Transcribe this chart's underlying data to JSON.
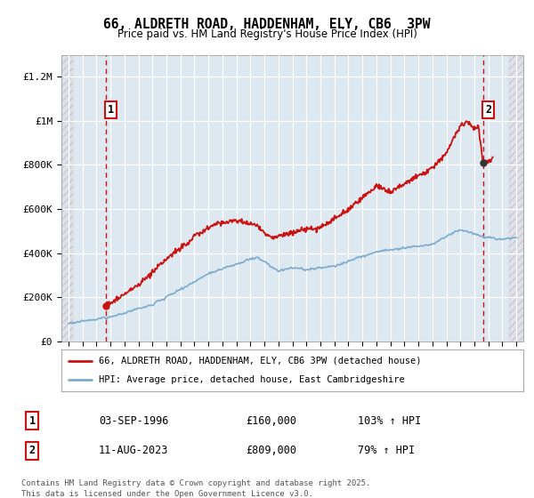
{
  "title": "66, ALDRETH ROAD, HADDENHAM, ELY, CB6  3PW",
  "subtitle": "Price paid vs. HM Land Registry's House Price Index (HPI)",
  "ylim": [
    0,
    1300000
  ],
  "xlim_start": 1993.5,
  "xlim_end": 2026.5,
  "purchase1_x": 1996.67,
  "purchase1_y": 160000,
  "purchase2_x": 2023.61,
  "purchase2_y": 809000,
  "vline1_x": 1996.67,
  "vline2_x": 2023.61,
  "legend_line1": "66, ALDRETH ROAD, HADDENHAM, ELY, CB6 3PW (detached house)",
  "legend_line2": "HPI: Average price, detached house, East Cambridgeshire",
  "annotation1_date": "03-SEP-1996",
  "annotation1_price": "£160,000",
  "annotation1_hpi": "103% ↑ HPI",
  "annotation2_date": "11-AUG-2023",
  "annotation2_price": "£809,000",
  "annotation2_hpi": "79% ↑ HPI",
  "footer": "Contains HM Land Registry data © Crown copyright and database right 2025.\nThis data is licensed under the Open Government Licence v3.0.",
  "line_color_red": "#cc1111",
  "line_color_blue": "#7aaacc",
  "plot_bg": "#dde8f0",
  "hatch_bg": "#e8e8e8"
}
